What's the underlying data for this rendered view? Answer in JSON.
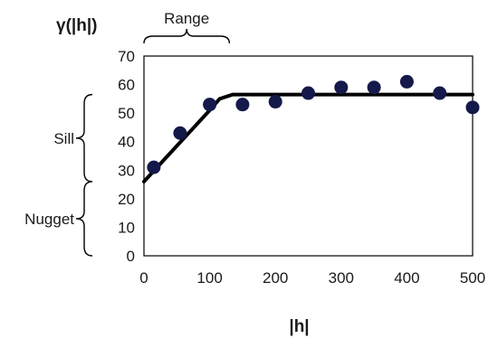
{
  "chart_data": {
    "type": "scatter",
    "title": "",
    "xlabel": "|h|",
    "ylabel": "γ(|h|)",
    "xlim": [
      0,
      500
    ],
    "ylim": [
      0,
      70
    ],
    "x_ticks": [
      0,
      100,
      200,
      300,
      400,
      500
    ],
    "y_ticks": [
      0,
      10,
      20,
      30,
      40,
      50,
      60,
      70
    ],
    "grid": false,
    "series": [
      {
        "type": "scatter",
        "color": "#14194a",
        "points": [
          {
            "x": 15,
            "y": 31
          },
          {
            "x": 55,
            "y": 43
          },
          {
            "x": 100,
            "y": 53
          },
          {
            "x": 150,
            "y": 53
          },
          {
            "x": 200,
            "y": 54
          },
          {
            "x": 250,
            "y": 57
          },
          {
            "x": 300,
            "y": 59
          },
          {
            "x": 350,
            "y": 59
          },
          {
            "x": 400,
            "y": 61
          },
          {
            "x": 450,
            "y": 57
          },
          {
            "x": 500,
            "y": 52
          }
        ]
      },
      {
        "type": "line",
        "color": "#000000",
        "points": [
          {
            "x": 0,
            "y": 26
          },
          {
            "x": 100,
            "y": 51
          },
          {
            "x": 115,
            "y": 55
          },
          {
            "x": 135,
            "y": 56.5
          },
          {
            "x": 500,
            "y": 56.5
          }
        ]
      }
    ],
    "annotations": [
      {
        "text": "Range",
        "from_x": 0,
        "to_x": 130,
        "edge": "top"
      },
      {
        "text": "Sill",
        "from_y": 26,
        "to_y": 56.5,
        "edge": "left"
      },
      {
        "text": "Nugget",
        "from_y": 0,
        "to_y": 26,
        "edge": "left"
      }
    ]
  }
}
